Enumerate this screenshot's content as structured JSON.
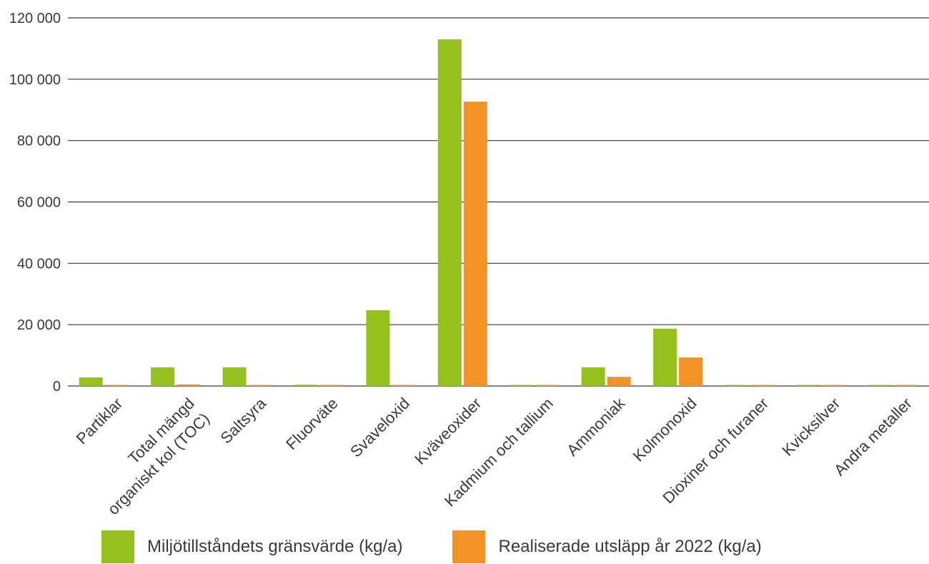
{
  "chart_data": {
    "type": "bar",
    "categories": [
      "Partiklar",
      [
        "Total mängd",
        "organiskt kol (TOC)"
      ],
      "Saltsyra",
      "Fluorväte",
      "Svaveloxid",
      "Kväveoxider",
      "Kadmium och tallium",
      "Ammoniak",
      "Kolmonoxid",
      "Dioxiner och furaner",
      "Kvicksilver",
      "Andra metaller"
    ],
    "series": [
      {
        "name": "Miljötillståndets gränsvärde (kg/a)",
        "color": "#95c11f",
        "values": [
          2800,
          6100,
          6100,
          400,
          24700,
          113000,
          100,
          6100,
          18700,
          300,
          10,
          100
        ]
      },
      {
        "name": "Realiserade utsläpp år 2022 (kg/a)",
        "color": "#f39325",
        "values": [
          300,
          500,
          300,
          30,
          30,
          92700,
          10,
          3000,
          9300,
          10,
          5,
          30
        ]
      }
    ],
    "ylim": [
      0,
      120000
    ],
    "yticks": [
      "0",
      "20 000",
      "40 000",
      "60 000",
      "80 000",
      "100 000",
      "120 000"
    ],
    "ytick_values": [
      0,
      20000,
      40000,
      60000,
      80000,
      100000,
      120000
    ],
    "grid": true,
    "legend_position": "bottom"
  },
  "legend": {
    "items": [
      {
        "label": "Miljötillståndets gränsvärde (kg/a)",
        "color": "#95c11f"
      },
      {
        "label": "Realiserade utsläpp år 2022 (kg/a)",
        "color": "#f39325"
      }
    ]
  }
}
